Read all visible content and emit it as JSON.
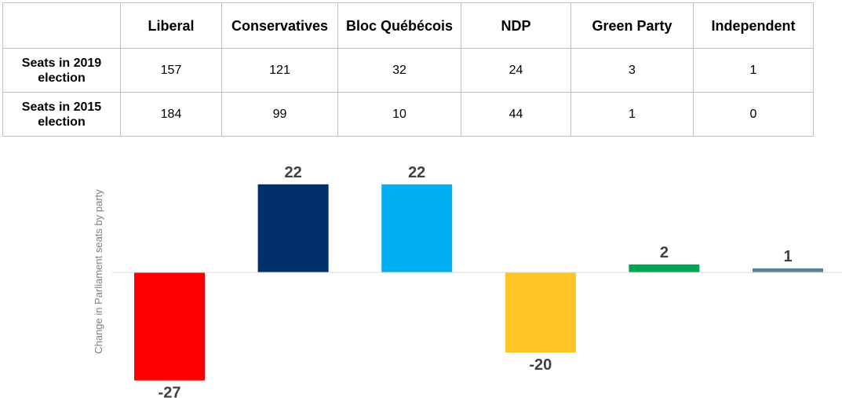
{
  "table": {
    "columns": [
      "Liberal",
      "Conservatives",
      "Bloc Québécois",
      "NDP",
      "Green Party",
      "Independent"
    ],
    "rows": [
      {
        "label": "Seats in 2019 election",
        "values": [
          "157",
          "121",
          "32",
          "24",
          "3",
          "1"
        ]
      },
      {
        "label": "Seats in 2015 election",
        "values": [
          "184",
          "99",
          "10",
          "44",
          "1",
          "0"
        ]
      }
    ]
  },
  "chart_data": {
    "type": "bar",
    "title": "",
    "xlabel": "",
    "ylabel": "Change in Parliament seats by party",
    "categories": [
      "Liberal",
      "Conservatives",
      "Bloc Québécois",
      "NDP",
      "Green Party",
      "Independent"
    ],
    "values": [
      -27,
      22,
      22,
      -20,
      2,
      1
    ],
    "colors": [
      "#ff0000",
      "#002f6c",
      "#00b0f0",
      "#ffc425",
      "#00a651",
      "#5b7f95"
    ],
    "ylim": [
      -27,
      22
    ],
    "grid": false,
    "legend": "none",
    "data_labels": [
      "-27",
      "22",
      "22",
      "-20",
      "2",
      "1"
    ]
  }
}
